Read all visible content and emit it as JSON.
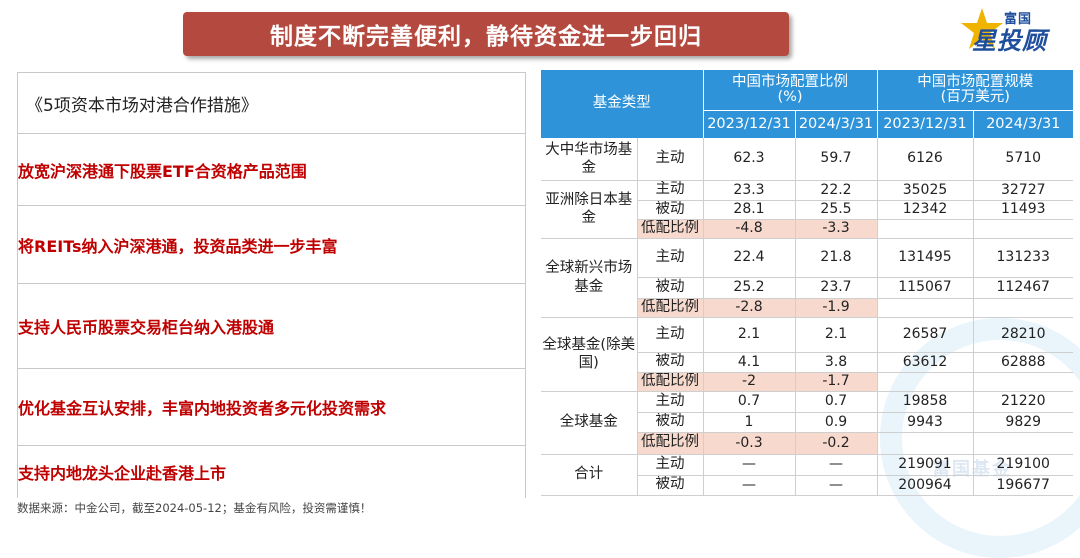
{
  "banner": {
    "title": "制度不断完善便利，静待资金进一步回归"
  },
  "logo": {
    "top_text": "富国",
    "main_text": "星投顾"
  },
  "measures": {
    "heading": "《5项资本市场对港合作措施》",
    "items": [
      "放宽沪深港通下股票ETF合资格产品范围",
      "将REITs纳入沪深港通，投资品类进一步丰富",
      "支持人民币股票交易柜台纳入港股通",
      "优化基金互认安排，丰富内地投资者多元化投资需求",
      "支持内地龙头企业赴香港上市"
    ]
  },
  "source": "数据来源：中金公司，截至2024-05-12；基金有风险，投资需谨慎！",
  "table": {
    "header": {
      "fund_type": "基金类型",
      "ratio_group": "中国市场配置比例（%）",
      "ratio_line1": "中国市场配置比例",
      "ratio_line2": "(%)",
      "scale_line1": "中国市场配置规模",
      "scale_line2": "(百万美元)",
      "dates": [
        "2023/12/31",
        "2024/3/31",
        "2023/12/31",
        "2024/3/31"
      ]
    },
    "groups": [
      {
        "name": "大中华市场基金",
        "rows": [
          {
            "sub": "主动",
            "r23": "62.3",
            "r24": "59.7",
            "s23": "6126",
            "s24": "5710"
          }
        ]
      },
      {
        "name": "亚洲除日本基金",
        "rows": [
          {
            "sub": "主动",
            "r23": "23.3",
            "r24": "22.2",
            "s23": "35025",
            "s24": "32727"
          },
          {
            "sub": "被动",
            "r23": "28.1",
            "r24": "25.5",
            "s23": "12342",
            "s24": "11493"
          },
          {
            "sub": "低配比例",
            "r23": "-4.8",
            "r24": "-3.3",
            "s23": "",
            "s24": ""
          }
        ]
      },
      {
        "name": "全球新兴市场基金",
        "rows": [
          {
            "sub": "主动",
            "r23": "22.4",
            "r24": "21.8",
            "s23": "131495",
            "s24": "131233"
          },
          {
            "sub": "被动",
            "r23": "25.2",
            "r24": "23.7",
            "s23": "115067",
            "s24": "112467"
          },
          {
            "sub": "低配比例",
            "r23": "-2.8",
            "r24": "-1.9",
            "s23": "",
            "s24": ""
          }
        ]
      },
      {
        "name": "全球基金(除美国)",
        "rows": [
          {
            "sub": "主动",
            "r23": "2.1",
            "r24": "2.1",
            "s23": "26587",
            "s24": "28210"
          },
          {
            "sub": "被动",
            "r23": "4.1",
            "r24": "3.8",
            "s23": "63612",
            "s24": "62888"
          },
          {
            "sub": "低配比例",
            "r23": "-2",
            "r24": "-1.7",
            "s23": "",
            "s24": ""
          }
        ]
      },
      {
        "name": "全球基金",
        "rows": [
          {
            "sub": "主动",
            "r23": "0.7",
            "r24": "0.7",
            "s23": "19858",
            "s24": "21220"
          },
          {
            "sub": "被动",
            "r23": "1",
            "r24": "0.9",
            "s23": "9943",
            "s24": "9829"
          },
          {
            "sub": "低配比例",
            "r23": "-0.3",
            "r24": "-0.2",
            "s23": "",
            "s24": ""
          }
        ]
      },
      {
        "name": "合计",
        "rows": [
          {
            "sub": "主动",
            "r23": "—",
            "r24": "—",
            "s23": "219091",
            "s24": "219100"
          },
          {
            "sub": "被动",
            "r23": "—",
            "r24": "—",
            "s23": "200964",
            "s24": "196677"
          }
        ]
      }
    ]
  },
  "watermark": "富国基金",
  "colors": {
    "banner": "#b44a3f",
    "header": "#2e93d8",
    "highlight": "#f7d9cd",
    "measure_text": "#c00000"
  }
}
